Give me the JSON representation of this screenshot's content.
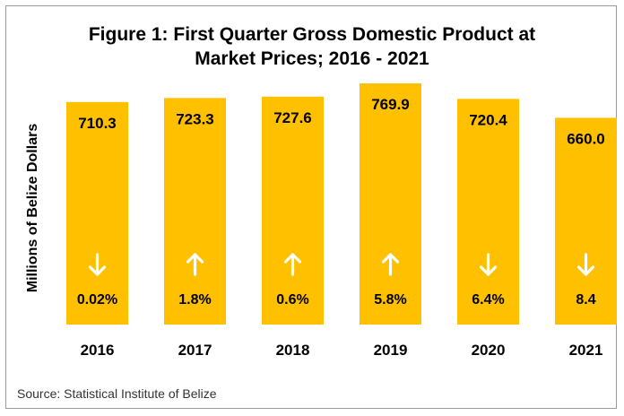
{
  "chart_data": {
    "type": "bar",
    "title_line1": "Figure 1: First Quarter Gross Domestic Product at",
    "title_line2": "Market Prices; 2016 - 2021",
    "xlabel": "",
    "ylabel": "Millions of Belize Dollars",
    "categories": [
      "2016",
      "2017",
      "2018",
      "2019",
      "2020",
      "2021"
    ],
    "values": [
      710.3,
      723.3,
      727.6,
      769.9,
      720.4,
      660.0
    ],
    "value_labels": [
      "710.3",
      "723.3",
      "727.6",
      "769.9",
      "720.4",
      "660.0"
    ],
    "change_labels": [
      "0.02%",
      "1.8%",
      "0.6%",
      "5.8%",
      "6.4%",
      "8.4"
    ],
    "change_direction": [
      "down",
      "up",
      "up",
      "up",
      "down",
      "down"
    ],
    "bar_color": "#FFC000",
    "ylim": [
      0,
      800
    ],
    "grid": false,
    "legend": "none"
  },
  "source": "Source: Statistical Institute of Belize"
}
